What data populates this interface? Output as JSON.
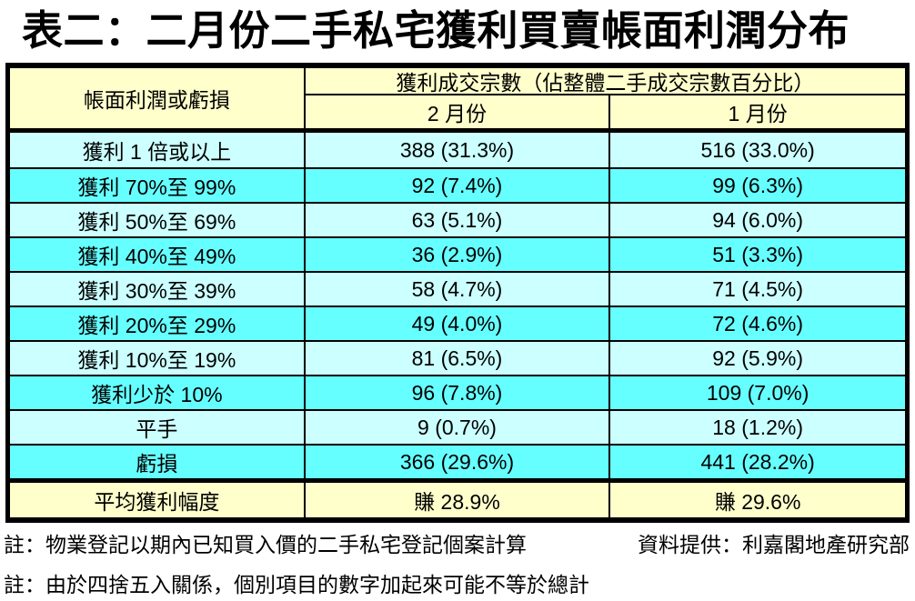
{
  "title": "表二：二月份二手私宅獲利買賣帳面利潤分布",
  "colors": {
    "header_bg": "#FFFFCC",
    "row_light": "#CCFFFF",
    "row_bright": "#66FFFF",
    "summary_bg": "#FFFFCC",
    "border": "#000000"
  },
  "table": {
    "header": {
      "row_head": "帳面利潤或虧損",
      "group": "獲利成交宗數（佔整體二手成交宗數百分比）",
      "feb": "2 月份",
      "jan": "1 月份"
    },
    "rows": [
      {
        "label": "獲利 1 倍或以上",
        "feb": "388 (31.3%)",
        "jan": "516 (33.0%)"
      },
      {
        "label": "獲利 70%至 99%",
        "feb": "92 (7.4%)",
        "jan": "99 (6.3%)"
      },
      {
        "label": "獲利 50%至 69%",
        "feb": "63 (5.1%)",
        "jan": "94 (6.0%)"
      },
      {
        "label": "獲利 40%至 49%",
        "feb": "36 (2.9%)",
        "jan": "51 (3.3%)"
      },
      {
        "label": "獲利 30%至 39%",
        "feb": "58 (4.7%)",
        "jan": "71 (4.5%)"
      },
      {
        "label": "獲利 20%至 29%",
        "feb": "49 (4.0%)",
        "jan": "72 (4.6%)"
      },
      {
        "label": "獲利 10%至 19%",
        "feb": "81 (6.5%)",
        "jan": "92 (5.9%)"
      },
      {
        "label": "獲利少於 10%",
        "feb": "96 (7.8%)",
        "jan": "109 (7.0%)"
      },
      {
        "label": "平手",
        "feb": "9 (0.7%)",
        "jan": "18 (1.2%)"
      },
      {
        "label": "虧損",
        "feb": "366 (29.6%)",
        "jan": "441 (28.2%)"
      }
    ],
    "summary": {
      "label": "平均獲利幅度",
      "feb": "賺 28.9%",
      "jan": "賺 29.6%"
    }
  },
  "footnotes": {
    "note1": "註：物業登記以期內已知買入價的二手私宅登記個案計算",
    "source": "資料提供：利嘉閣地產研究部",
    "note2": "註：由於四捨五入關係，個別項目的數字加起來可能不等於總計"
  }
}
